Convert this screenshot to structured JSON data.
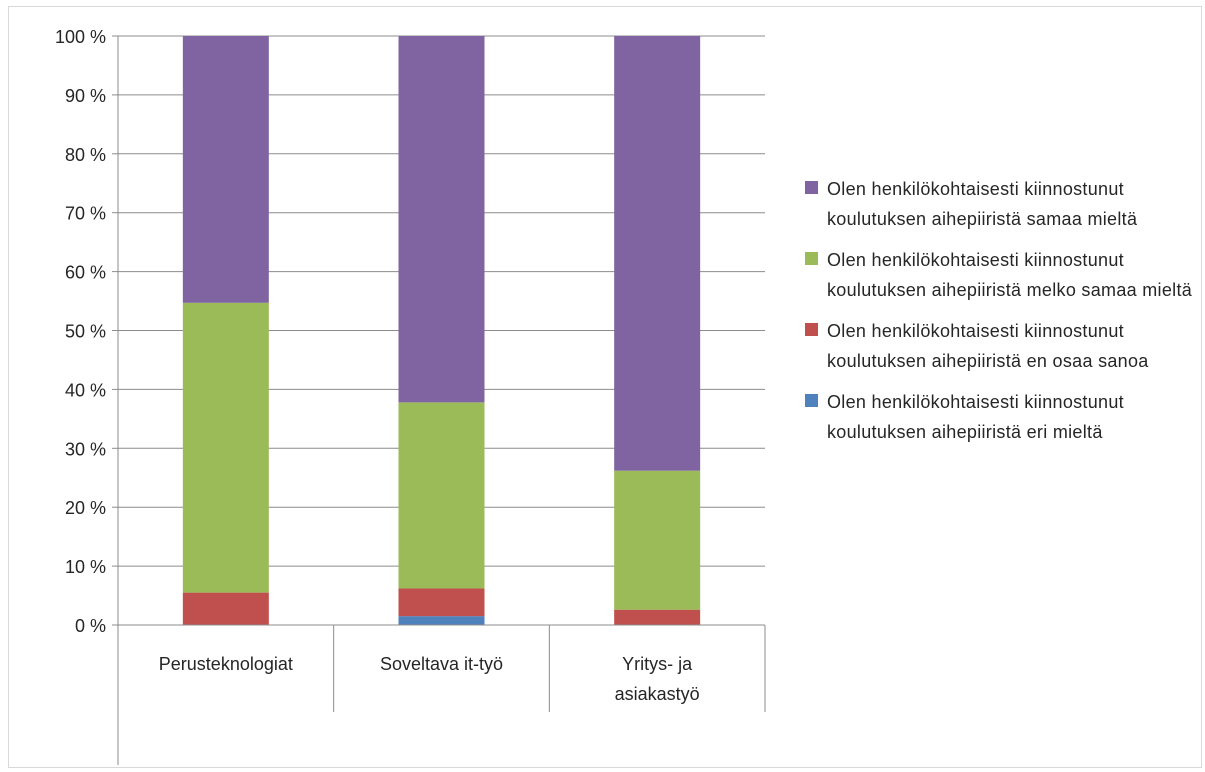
{
  "chart_data": {
    "type": "bar",
    "stacked": true,
    "percent": true,
    "categories": [
      "Perusteknologiat",
      "Soveltava it-työ",
      "Yritys- ja asiakastyö"
    ],
    "series": [
      {
        "name": "Olen henkilökohtaisesti kiinnostunut koulutuksen aihepiiristä eri mieltä",
        "color": "#4f81bd",
        "values": [
          0,
          1.5,
          0
        ]
      },
      {
        "name": "Olen henkilökohtaisesti kiinnostunut koulutuksen aihepiiristä en osaa sanoa",
        "color": "#c0504d",
        "values": [
          5.5,
          4.7,
          2.6
        ]
      },
      {
        "name": "Olen henkilökohtaisesti kiinnostunut koulutuksen aihepiiristä melko samaa mieltä",
        "color": "#9bbb59",
        "values": [
          49.2,
          31.6,
          23.6
        ]
      },
      {
        "name": "Olen henkilökohtaisesti kiinnostunut koulutuksen aihepiiristä samaa mieltä",
        "color": "#8064a2",
        "values": [
          45.3,
          62.2,
          73.8
        ]
      }
    ],
    "yticks": [
      "0 %",
      "10 %",
      "20 %",
      "30 %",
      "40 %",
      "50 %",
      "60 %",
      "70 %",
      "80 %",
      "90 %",
      "100 %"
    ],
    "ylim": [
      0,
      100
    ],
    "grid": true,
    "legend_position": "right"
  }
}
